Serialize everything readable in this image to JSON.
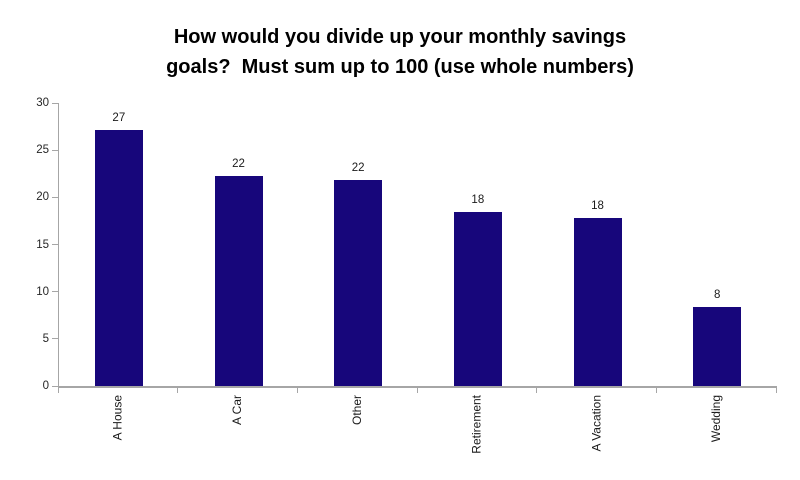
{
  "title_lines": [
    "How would you divide up your monthly savings",
    "goals?  Must sum up to 100 (use whole numbers)"
  ],
  "chart_data": {
    "type": "bar",
    "title": "How would you divide up your monthly savings goals?  Must sum up to 100 (use whole numbers)",
    "categories": [
      "A House",
      "A Car",
      "Other",
      "Retirement",
      "A Vacation",
      "Wedding"
    ],
    "values": [
      27,
      22,
      22,
      18,
      18,
      8
    ],
    "data_labels": [
      "27",
      "22",
      "22",
      "18",
      "18",
      "8"
    ],
    "bar_heights_exact": [
      27.1,
      22.3,
      21.8,
      18.4,
      17.8,
      8.4
    ],
    "xlabel": "",
    "ylabel": "",
    "ylim": [
      0,
      30
    ],
    "yticks": [
      0,
      5,
      10,
      15,
      20,
      25,
      30
    ],
    "grid": false,
    "legend": false,
    "x_label_rotation_degrees": 90,
    "bar_color": "#17067b",
    "axis_color": "#a6a6a6",
    "tick_label_color": "#262626",
    "title_color": "#000000"
  }
}
